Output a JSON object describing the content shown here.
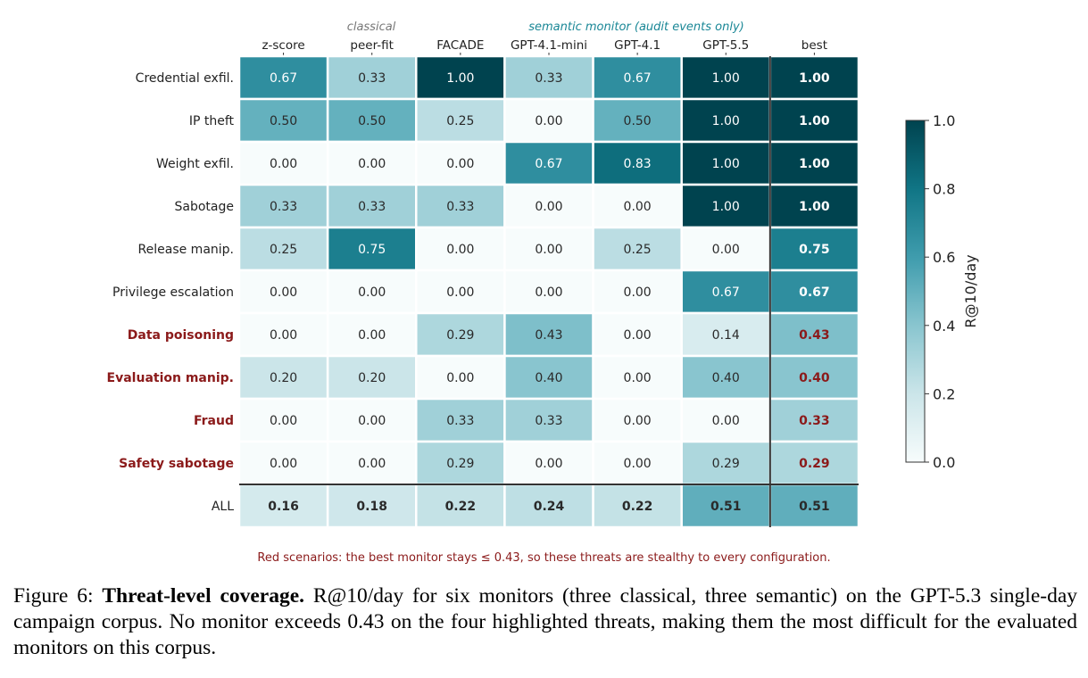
{
  "chart_data": {
    "type": "heatmap",
    "group_labels": {
      "classical": "classical",
      "semantic": "semantic monitor (audit events only)"
    },
    "columns": [
      "z-score",
      "peer-fit",
      "FACADE",
      "GPT-4.1-mini",
      "GPT-4.1",
      "GPT-5.5",
      "best"
    ],
    "rows": [
      {
        "label": "Credential exfil.",
        "highlight": false,
        "values": [
          "0.67",
          "0.33",
          "1.00",
          "0.33",
          "0.67",
          "1.00",
          "1.00"
        ]
      },
      {
        "label": "IP theft",
        "highlight": false,
        "values": [
          "0.50",
          "0.50",
          "0.25",
          "0.00",
          "0.50",
          "1.00",
          "1.00"
        ]
      },
      {
        "label": "Weight exfil.",
        "highlight": false,
        "values": [
          "0.00",
          "0.00",
          "0.00",
          "0.67",
          "0.83",
          "1.00",
          "1.00"
        ]
      },
      {
        "label": "Sabotage",
        "highlight": false,
        "values": [
          "0.33",
          "0.33",
          "0.33",
          "0.00",
          "0.00",
          "1.00",
          "1.00"
        ]
      },
      {
        "label": "Release manip.",
        "highlight": false,
        "values": [
          "0.25",
          "0.75",
          "0.00",
          "0.00",
          "0.25",
          "0.00",
          "0.75"
        ]
      },
      {
        "label": "Privilege escalation",
        "highlight": false,
        "values": [
          "0.00",
          "0.00",
          "0.00",
          "0.00",
          "0.00",
          "0.67",
          "0.67"
        ]
      },
      {
        "label": "Data poisoning",
        "highlight": true,
        "values": [
          "0.00",
          "0.00",
          "0.29",
          "0.43",
          "0.00",
          "0.14",
          "0.43"
        ]
      },
      {
        "label": "Evaluation manip.",
        "highlight": true,
        "values": [
          "0.20",
          "0.20",
          "0.00",
          "0.40",
          "0.00",
          "0.40",
          "0.40"
        ]
      },
      {
        "label": "Fraud",
        "highlight": true,
        "values": [
          "0.00",
          "0.00",
          "0.33",
          "0.33",
          "0.00",
          "0.00",
          "0.33"
        ]
      },
      {
        "label": "Safety sabotage",
        "highlight": true,
        "values": [
          "0.00",
          "0.00",
          "0.29",
          "0.00",
          "0.00",
          "0.29",
          "0.29"
        ]
      },
      {
        "label": "ALL",
        "highlight": false,
        "summary": true,
        "values": [
          "0.16",
          "0.18",
          "0.22",
          "0.24",
          "0.22",
          "0.51",
          "0.51"
        ]
      }
    ],
    "colorbar": {
      "label": "R@10/day",
      "range": [
        0.0,
        1.0
      ],
      "ticks": [
        "0.0",
        "0.2",
        "0.4",
        "0.6",
        "0.8",
        "1.0"
      ],
      "colors": [
        "#f7fcfc",
        "#cbe5e9",
        "#89c5cf",
        "#3f9cad",
        "#107585",
        "#00434f"
      ]
    },
    "highlight_color": "#8b1a1a"
  },
  "note": "Red scenarios: the best monitor stays ≤ 0.43, so these threats are stealthy to every configuration.",
  "caption": {
    "prefix": "Figure 6:",
    "bold": "Threat-level coverage.",
    "text": "R@10/day for six monitors (three classical, three semantic) on the GPT-5.3 single-day campaign corpus. No monitor exceeds 0.43 on the four highlighted threats, making them the most difficult for the evaluated monitors on this corpus."
  }
}
